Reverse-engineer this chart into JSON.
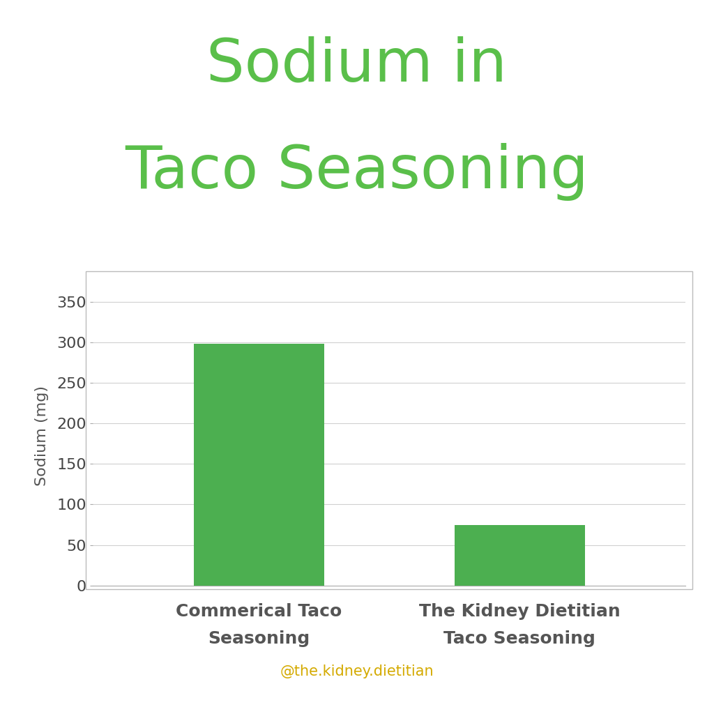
{
  "title_line1": "Sodium in",
  "title_line2": "Taco Seasoning",
  "title_color": "#5abf4a",
  "title_fontsize": 62,
  "categories": [
    "Commerical Taco\nSeasoning",
    "The Kidney Dietitian\nTaco Seasoning"
  ],
  "values": [
    298,
    75
  ],
  "bar_color": "#4CAF50",
  "ylabel": "Sodium (mg)",
  "ylabel_fontsize": 16,
  "ylim": [
    0,
    370
  ],
  "yticks": [
    0,
    50,
    100,
    150,
    200,
    250,
    300,
    350
  ],
  "tick_fontsize": 16,
  "xlabel_fontsize": 18,
  "background_color": "#ffffff",
  "chart_bg_color": "#ffffff",
  "grid_color": "#d0d0d0",
  "watermark": "@the.kidney.dietitian",
  "watermark_color": "#d4aa00",
  "watermark_fontsize": 15,
  "bar_width": 0.22,
  "figure_size": [
    10.24,
    10.24
  ]
}
